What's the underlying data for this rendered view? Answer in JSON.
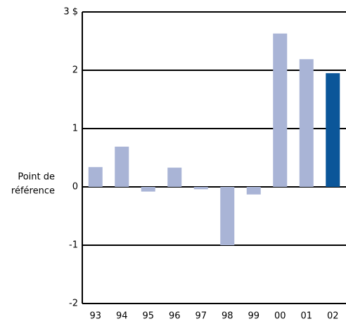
{
  "chart_data": {
    "type": "bar",
    "annotation": [
      "Point de",
      "référence"
    ],
    "categories": [
      "93",
      "94",
      "95",
      "96",
      "97",
      "98",
      "99",
      "00",
      "01",
      "02"
    ],
    "values": [
      0.34,
      0.69,
      -0.08,
      0.33,
      -0.04,
      -1.0,
      -0.13,
      2.63,
      2.19,
      1.95
    ],
    "colors": [
      "#a9b4d6",
      "#a9b4d6",
      "#a9b4d6",
      "#a9b4d6",
      "#a9b4d6",
      "#a9b4d6",
      "#a9b4d6",
      "#a9b4d6",
      "#a9b4d6",
      "#0b5699"
    ],
    "ylim": [
      -2,
      3
    ],
    "yticks": [
      -2,
      -1,
      0,
      1,
      2,
      {
        "value": 3,
        "label": "3 $"
      }
    ],
    "grid": true
  }
}
